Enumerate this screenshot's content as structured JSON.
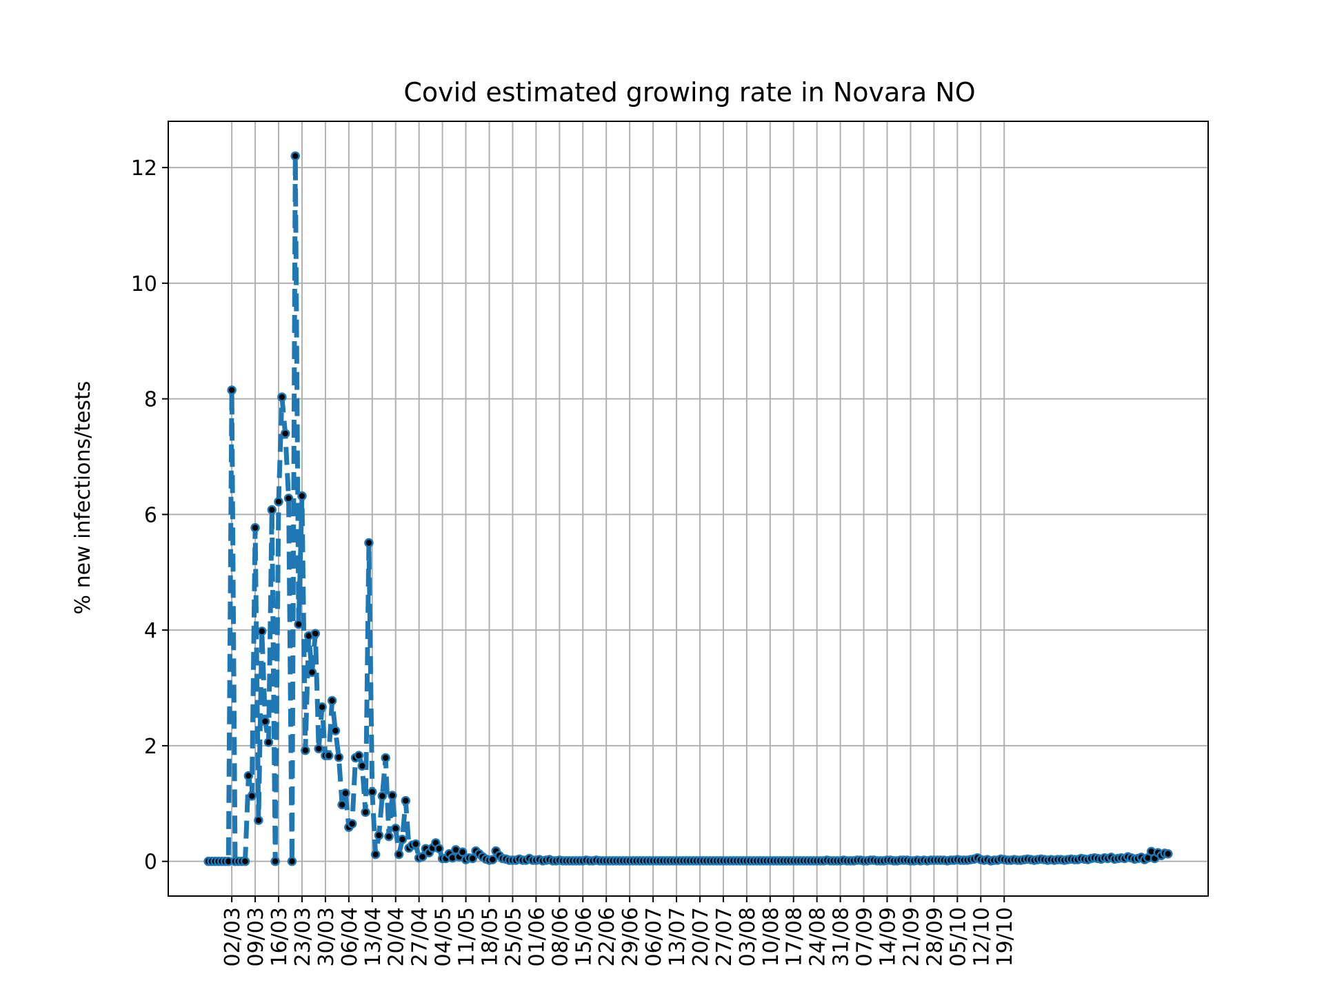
{
  "chart_data": {
    "type": "line",
    "title": "Covid estimated growing rate in Novara NO",
    "xlabel": "",
    "ylabel": "% new infections/tests",
    "ylim": [
      -0.6,
      12.8
    ],
    "yticks": [
      0,
      2,
      4,
      6,
      8,
      10,
      12
    ],
    "xtick_labels": [
      "02/03",
      "09/03",
      "16/03",
      "23/03",
      "30/03",
      "06/04",
      "13/04",
      "20/04",
      "27/04",
      "04/05",
      "11/05",
      "18/05",
      "25/05",
      "01/06",
      "08/06",
      "15/06",
      "22/06",
      "29/06",
      "06/07",
      "13/07",
      "20/07",
      "27/07",
      "03/08",
      "10/08",
      "17/08",
      "24/08",
      "31/08",
      "07/09",
      "14/09",
      "21/09",
      "28/09",
      "05/10",
      "12/10",
      "19/10"
    ],
    "x_start_date": "24/02",
    "grid": true,
    "legend": "none",
    "line_color": "#1f77b4",
    "line_style": "dashed",
    "marker_color": "#000000",
    "series": [
      {
        "values": [
          0,
          0,
          0,
          0,
          0,
          0,
          0,
          8.15,
          0,
          0,
          0,
          0,
          1.48,
          1.13,
          5.77,
          0.71,
          3.98,
          2.42,
          2.06,
          6.08,
          0,
          6.22,
          8.03,
          7.4,
          6.28,
          0,
          12.2,
          4.1,
          6.32,
          1.92,
          3.9,
          3.27,
          3.94,
          1.95,
          2.67,
          1.83,
          1.83,
          2.78,
          2.26,
          1.8,
          0.98,
          1.18,
          0.59,
          0.65,
          1.79,
          1.83,
          1.65,
          0.85,
          5.51,
          1.2,
          0.12,
          0.45,
          1.13,
          1.79,
          0.43,
          1.14,
          0.57,
          0.12,
          0.38,
          1.05,
          0.23,
          0.28,
          0.3,
          0.06,
          0.08,
          0.22,
          0.15,
          0.23,
          0.32,
          0.22,
          0.05,
          0.05,
          0.13,
          0.06,
          0.2,
          0.08,
          0.16,
          0.03,
          0.06,
          0.05,
          0.18,
          0.13,
          0.08,
          0.04,
          0.02,
          0.03,
          0.18,
          0.1,
          0.05,
          0.04,
          0.02,
          0.02,
          0.02,
          0.04,
          0.02,
          0.02,
          0.05,
          0.02,
          0.02,
          0.03,
          0.01,
          0.02,
          0.03,
          0.01,
          0.01,
          0.02,
          0.01,
          0.01,
          0.01,
          0.01,
          0.01,
          0.01,
          0.01,
          0.02,
          0.01,
          0.01,
          0.02,
          0.01,
          0.01,
          0.01,
          0.01,
          0.01,
          0.01,
          0.01,
          0.01,
          0.01,
          0.01,
          0.01,
          0.01,
          0.01,
          0.01,
          0.01,
          0.01,
          0.01,
          0.01,
          0.01,
          0.01,
          0.01,
          0.01,
          0.01,
          0.01,
          0.01,
          0.01,
          0.01,
          0.01,
          0.01,
          0.01,
          0.01,
          0.01,
          0.01,
          0.01,
          0.01,
          0.01,
          0.01,
          0.01,
          0.01,
          0.01,
          0.01,
          0.01,
          0.01,
          0.01,
          0.01,
          0.01,
          0.01,
          0.01,
          0.01,
          0.01,
          0.01,
          0.01,
          0.01,
          0.01,
          0.01,
          0.01,
          0.01,
          0.01,
          0.01,
          0.01,
          0.01,
          0.01,
          0.01,
          0.01,
          0.01,
          0.01,
          0.01,
          0.01,
          0.02,
          0.01,
          0.01,
          0.01,
          0.01,
          0.02,
          0.01,
          0.01,
          0.01,
          0.02,
          0.02,
          0.01,
          0.01,
          0.02,
          0.02,
          0.01,
          0.01,
          0.01,
          0.02,
          0.02,
          0.01,
          0.01,
          0.02,
          0.02,
          0.02,
          0.01,
          0.01,
          0.02,
          0.01,
          0.02,
          0.01,
          0.02,
          0.02,
          0.02,
          0.02,
          0.02,
          0.01,
          0.02,
          0.02,
          0.03,
          0.02,
          0.02,
          0.02,
          0.03,
          0.04,
          0.06,
          0.03,
          0.02,
          0.03,
          0.01,
          0.02,
          0.02,
          0.04,
          0.03,
          0.02,
          0.02,
          0.03,
          0.02,
          0.02,
          0.03,
          0.04,
          0.03,
          0.02,
          0.03,
          0.04,
          0.03,
          0.02,
          0.03,
          0.02,
          0.03,
          0.03,
          0.02,
          0.03,
          0.04,
          0.03,
          0.03,
          0.05,
          0.04,
          0.03,
          0.05,
          0.06,
          0.05,
          0.04,
          0.06,
          0.05,
          0.07,
          0.04,
          0.05,
          0.06,
          0.05,
          0.08,
          0.06,
          0.04,
          0.05,
          0.07,
          0.03,
          0.06,
          0.17,
          0.05,
          0.15,
          0.1,
          0.14,
          0.13
        ]
      }
    ]
  }
}
